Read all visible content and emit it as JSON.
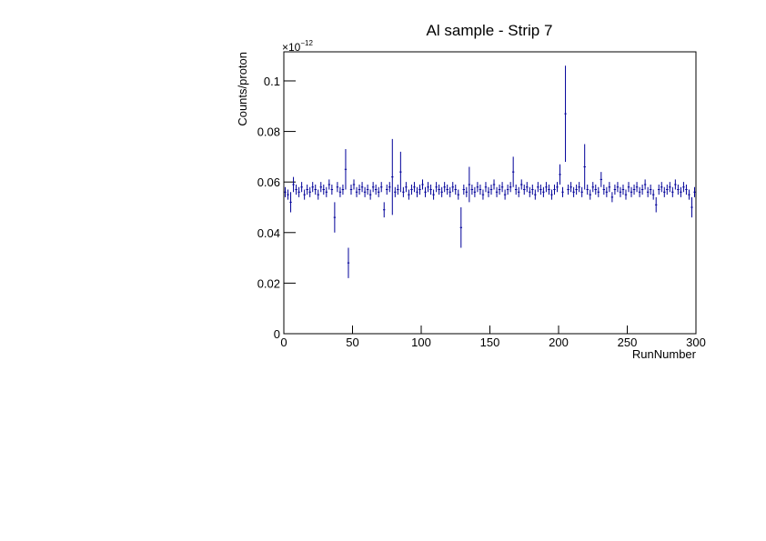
{
  "chart_data": {
    "type": "errorbar",
    "title": "Al sample - Strip 7",
    "x_label": "RunNumber",
    "y_label": "Counts/proton",
    "y_exponent": {
      "base": "×10",
      "power": "−12"
    },
    "color": "#000099",
    "xlim": [
      0,
      300
    ],
    "xticks": [
      0,
      50,
      100,
      150,
      200,
      250,
      300
    ],
    "ylim": [
      0,
      0.1115
    ],
    "yticks": [
      0,
      0.02,
      0.04,
      0.06,
      0.08,
      0.1
    ],
    "x": [
      1,
      3,
      5,
      7,
      9,
      11,
      13,
      15,
      17,
      19,
      21,
      23,
      25,
      27,
      29,
      31,
      33,
      35,
      37,
      39,
      41,
      43,
      45,
      47,
      49,
      51,
      53,
      55,
      57,
      59,
      61,
      63,
      65,
      67,
      69,
      71,
      73,
      75,
      77,
      79,
      81,
      83,
      85,
      87,
      89,
      91,
      93,
      95,
      97,
      99,
      101,
      103,
      105,
      107,
      109,
      111,
      113,
      115,
      117,
      119,
      121,
      123,
      125,
      127,
      129,
      131,
      133,
      135,
      137,
      139,
      141,
      143,
      145,
      147,
      149,
      151,
      153,
      155,
      157,
      159,
      161,
      163,
      165,
      167,
      169,
      171,
      173,
      175,
      177,
      179,
      181,
      183,
      185,
      187,
      189,
      191,
      193,
      195,
      197,
      199,
      201,
      203,
      205,
      207,
      209,
      211,
      213,
      215,
      217,
      219,
      221,
      223,
      225,
      227,
      229,
      231,
      233,
      235,
      237,
      239,
      241,
      243,
      245,
      247,
      249,
      251,
      253,
      255,
      257,
      259,
      261,
      263,
      265,
      267,
      269,
      271,
      273,
      275,
      277,
      279,
      281,
      283,
      285,
      287,
      289,
      291,
      293,
      295,
      297,
      299
    ],
    "values": [
      0.056,
      0.055,
      0.052,
      0.059,
      0.057,
      0.056,
      0.058,
      0.055,
      0.057,
      0.056,
      0.058,
      0.057,
      0.055,
      0.058,
      0.057,
      0.056,
      0.059,
      0.057,
      0.046,
      0.058,
      0.056,
      0.057,
      0.065,
      0.028,
      0.057,
      0.059,
      0.056,
      0.057,
      0.058,
      0.056,
      0.057,
      0.055,
      0.058,
      0.057,
      0.056,
      0.058,
      0.049,
      0.057,
      0.058,
      0.062,
      0.056,
      0.057,
      0.064,
      0.056,
      0.058,
      0.055,
      0.057,
      0.058,
      0.056,
      0.057,
      0.059,
      0.056,
      0.058,
      0.057,
      0.055,
      0.058,
      0.057,
      0.056,
      0.058,
      0.057,
      0.056,
      0.058,
      0.057,
      0.055,
      0.042,
      0.057,
      0.056,
      0.059,
      0.057,
      0.056,
      0.058,
      0.057,
      0.055,
      0.058,
      0.056,
      0.057,
      0.059,
      0.056,
      0.057,
      0.058,
      0.055,
      0.057,
      0.058,
      0.064,
      0.057,
      0.056,
      0.059,
      0.057,
      0.058,
      0.056,
      0.057,
      0.055,
      0.058,
      0.057,
      0.056,
      0.058,
      0.057,
      0.055,
      0.057,
      0.058,
      0.063,
      0.056,
      0.087,
      0.057,
      0.058,
      0.056,
      0.057,
      0.058,
      0.056,
      0.066,
      0.057,
      0.055,
      0.058,
      0.057,
      0.056,
      0.061,
      0.057,
      0.056,
      0.058,
      0.054,
      0.057,
      0.058,
      0.056,
      0.057,
      0.055,
      0.058,
      0.056,
      0.057,
      0.058,
      0.056,
      0.057,
      0.059,
      0.056,
      0.057,
      0.055,
      0.051,
      0.057,
      0.058,
      0.056,
      0.057,
      0.058,
      0.056,
      0.059,
      0.057,
      0.056,
      0.058,
      0.057,
      0.055,
      0.05,
      0.056
    ],
    "errors": [
      0.002,
      0.002,
      0.004,
      0.003,
      0.002,
      0.002,
      0.002,
      0.002,
      0.002,
      0.002,
      0.002,
      0.002,
      0.002,
      0.002,
      0.002,
      0.002,
      0.002,
      0.002,
      0.006,
      0.002,
      0.002,
      0.002,
      0.008,
      0.006,
      0.002,
      0.002,
      0.002,
      0.002,
      0.002,
      0.002,
      0.002,
      0.002,
      0.002,
      0.002,
      0.002,
      0.002,
      0.003,
      0.002,
      0.002,
      0.015,
      0.002,
      0.002,
      0.008,
      0.002,
      0.002,
      0.002,
      0.002,
      0.002,
      0.002,
      0.002,
      0.002,
      0.002,
      0.002,
      0.002,
      0.002,
      0.002,
      0.002,
      0.002,
      0.002,
      0.002,
      0.002,
      0.002,
      0.002,
      0.002,
      0.008,
      0.002,
      0.002,
      0.007,
      0.002,
      0.002,
      0.002,
      0.002,
      0.002,
      0.002,
      0.002,
      0.002,
      0.002,
      0.002,
      0.002,
      0.002,
      0.002,
      0.002,
      0.002,
      0.006,
      0.002,
      0.002,
      0.002,
      0.002,
      0.002,
      0.002,
      0.002,
      0.002,
      0.002,
      0.002,
      0.002,
      0.002,
      0.002,
      0.002,
      0.002,
      0.002,
      0.004,
      0.002,
      0.019,
      0.002,
      0.002,
      0.002,
      0.002,
      0.002,
      0.002,
      0.009,
      0.002,
      0.002,
      0.002,
      0.002,
      0.002,
      0.003,
      0.002,
      0.002,
      0.002,
      0.002,
      0.002,
      0.002,
      0.002,
      0.002,
      0.002,
      0.002,
      0.002,
      0.002,
      0.002,
      0.002,
      0.002,
      0.002,
      0.002,
      0.002,
      0.002,
      0.003,
      0.002,
      0.002,
      0.002,
      0.002,
      0.002,
      0.002,
      0.002,
      0.002,
      0.002,
      0.002,
      0.002,
      0.002,
      0.004,
      0.002
    ]
  }
}
